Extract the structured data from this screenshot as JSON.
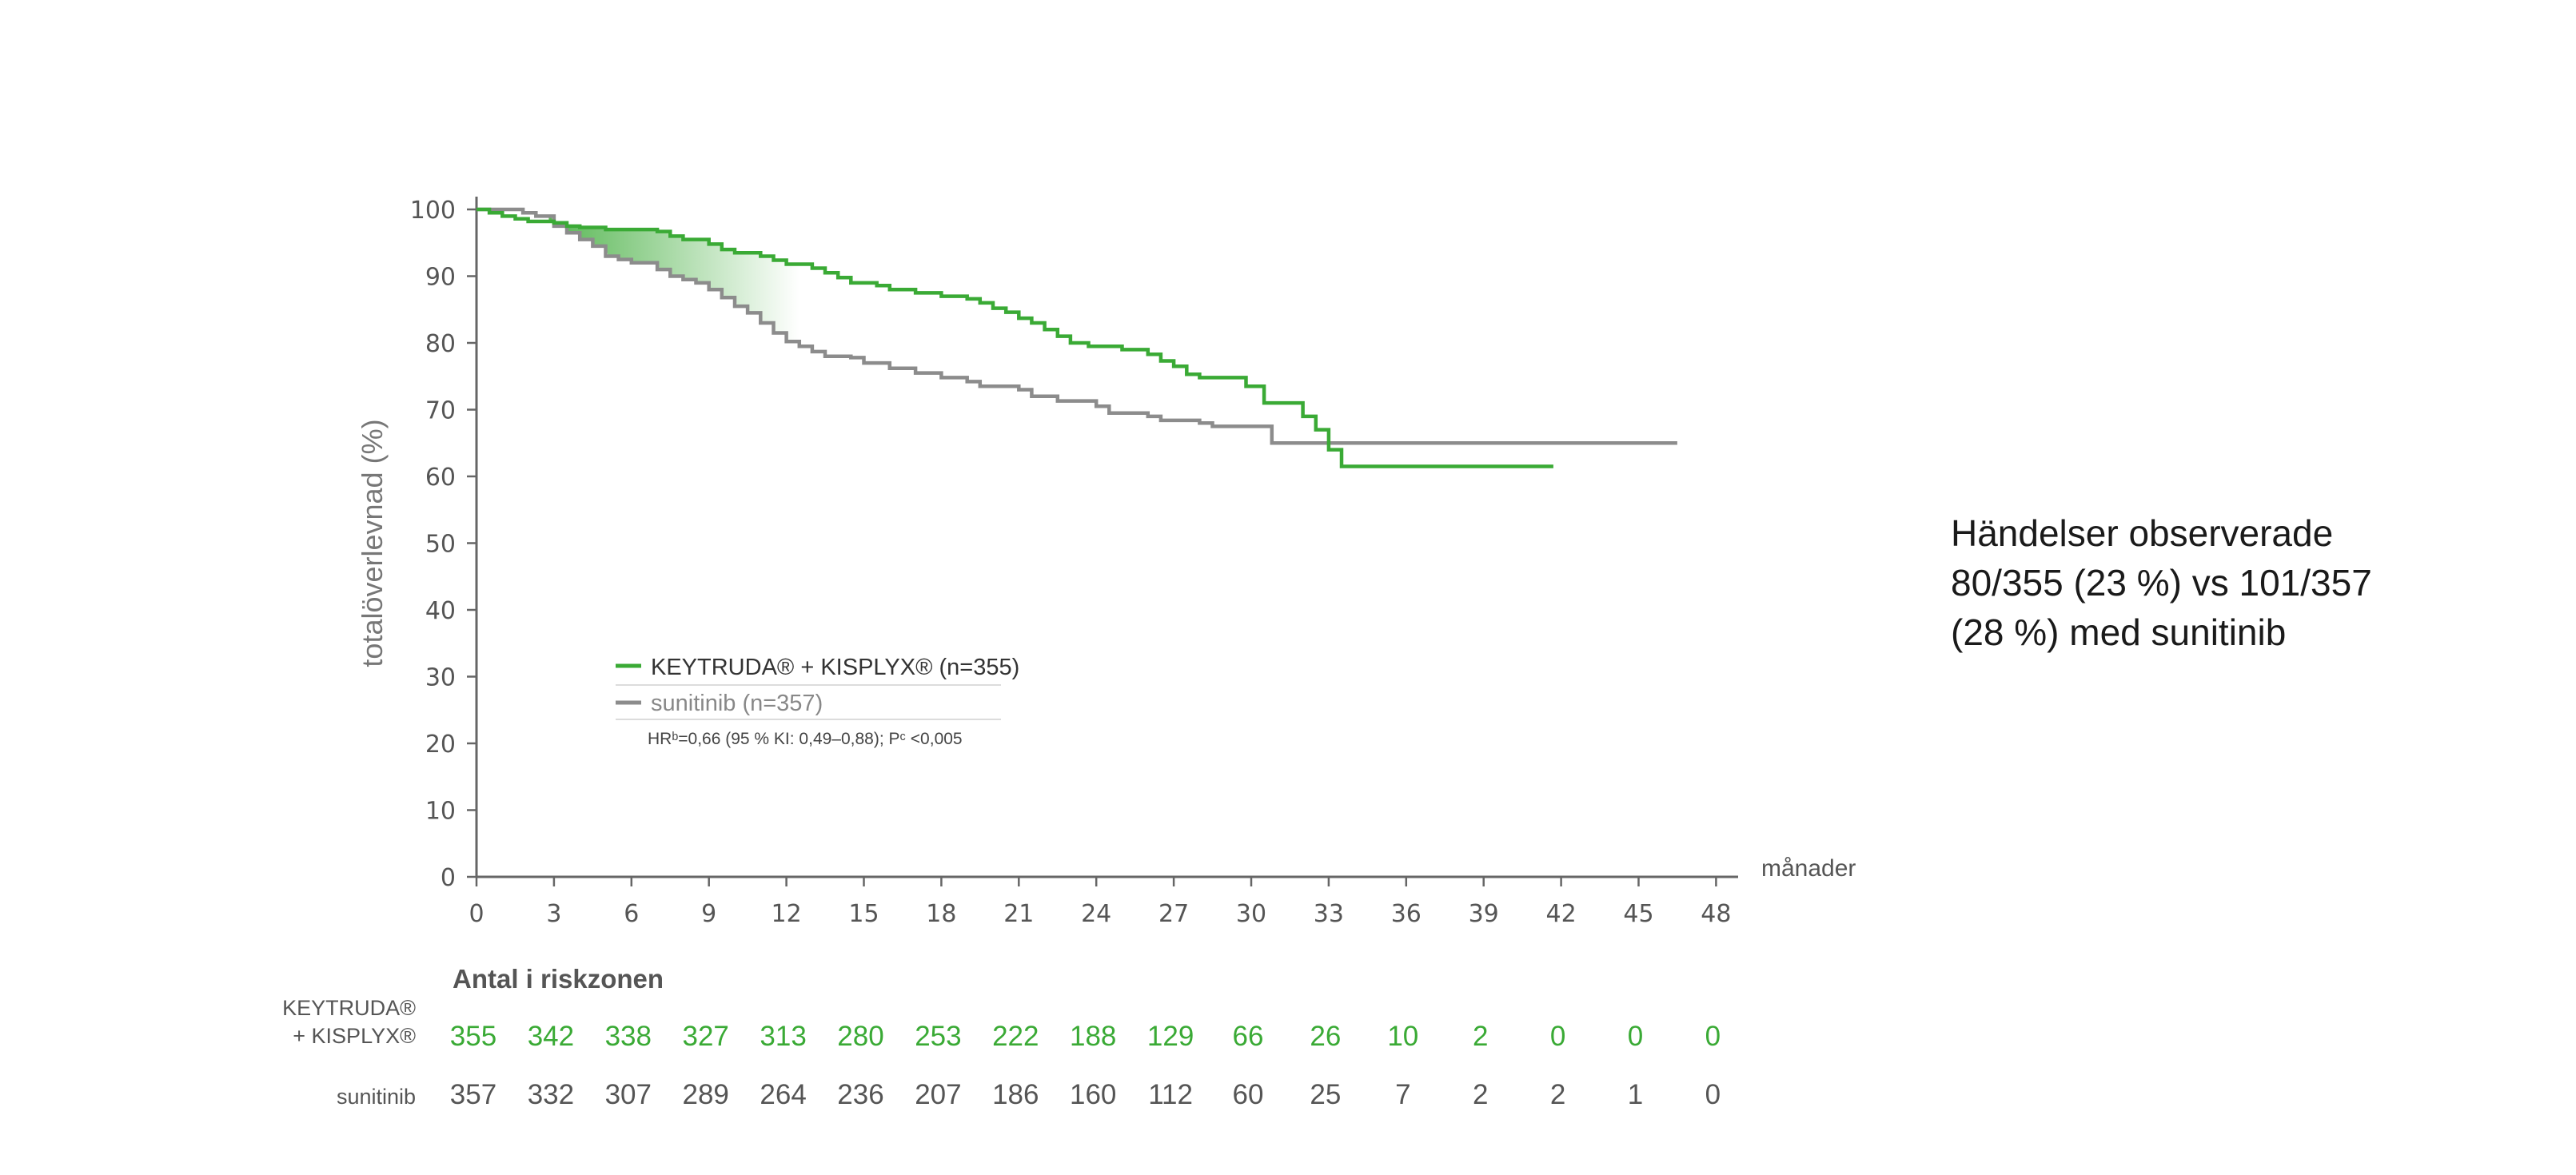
{
  "chart_data": {
    "type": "line",
    "ylabel": "totalöverlevnad (%)",
    "xlabel": "månader",
    "ylim": [
      0,
      100
    ],
    "xlim": [
      0,
      48
    ],
    "xticks": [
      0,
      3,
      6,
      9,
      12,
      15,
      18,
      21,
      24,
      27,
      30,
      33,
      36,
      39,
      42,
      45,
      48
    ],
    "yticks": [
      0,
      10,
      20,
      30,
      40,
      50,
      60,
      70,
      80,
      90,
      100
    ],
    "grid": false,
    "series": [
      {
        "name": "KEYTRUDA® + KISPLYX® (n=355)",
        "color": "#3aaa35",
        "points": [
          [
            0,
            100
          ],
          [
            0.5,
            99.5
          ],
          [
            1,
            99
          ],
          [
            1.5,
            98.6
          ],
          [
            2,
            98.2
          ],
          [
            3,
            98
          ],
          [
            3.5,
            97.5
          ],
          [
            4,
            97.3
          ],
          [
            5,
            97
          ],
          [
            6,
            97
          ],
          [
            7,
            96.7
          ],
          [
            7.5,
            96
          ],
          [
            8,
            95.5
          ],
          [
            9,
            94.8
          ],
          [
            9.5,
            94
          ],
          [
            10,
            93.5
          ],
          [
            11,
            93
          ],
          [
            11.5,
            92.4
          ],
          [
            12,
            91.8
          ],
          [
            13,
            91.2
          ],
          [
            13.5,
            90.5
          ],
          [
            14,
            89.8
          ],
          [
            14.5,
            89
          ],
          [
            15.5,
            88.6
          ],
          [
            16,
            88
          ],
          [
            17,
            87.5
          ],
          [
            18,
            87
          ],
          [
            19,
            86.6
          ],
          [
            19.5,
            86
          ],
          [
            20,
            85.2
          ],
          [
            20.5,
            84.6
          ],
          [
            21,
            83.7
          ],
          [
            21.5,
            83
          ],
          [
            22,
            82
          ],
          [
            22.5,
            81
          ],
          [
            23,
            80
          ],
          [
            23.7,
            79.5
          ],
          [
            25,
            79
          ],
          [
            26,
            78.3
          ],
          [
            26.5,
            77.3
          ],
          [
            27,
            76.5
          ],
          [
            27.5,
            75.3
          ],
          [
            28,
            74.8
          ],
          [
            29,
            74.8
          ],
          [
            29.8,
            73.5
          ],
          [
            30.5,
            71
          ],
          [
            31.5,
            71
          ],
          [
            32,
            69
          ],
          [
            32.5,
            67
          ],
          [
            33,
            64
          ],
          [
            33.5,
            61.5
          ],
          [
            35,
            61.5
          ],
          [
            38,
            61.5
          ],
          [
            41.7,
            61.5
          ]
        ]
      },
      {
        "name": "sunitinib (n=357)",
        "color": "#8c8c8c",
        "points": [
          [
            0,
            100
          ],
          [
            1,
            100
          ],
          [
            1.8,
            99.5
          ],
          [
            2.3,
            99
          ],
          [
            3,
            97.5
          ],
          [
            3.5,
            96.5
          ],
          [
            4,
            95.5
          ],
          [
            4.5,
            94.5
          ],
          [
            5,
            93
          ],
          [
            5.5,
            92.5
          ],
          [
            6,
            92
          ],
          [
            7,
            91
          ],
          [
            7.5,
            90
          ],
          [
            8,
            89.5
          ],
          [
            8.5,
            89
          ],
          [
            9,
            88
          ],
          [
            9.5,
            86.8
          ],
          [
            10,
            85.5
          ],
          [
            10.5,
            84.5
          ],
          [
            11,
            83
          ],
          [
            11.5,
            81.5
          ],
          [
            12,
            80.2
          ],
          [
            12.5,
            79.5
          ],
          [
            13,
            78.7
          ],
          [
            13.5,
            78
          ],
          [
            14.5,
            77.8
          ],
          [
            15,
            77
          ],
          [
            16,
            76.2
          ],
          [
            17,
            75.5
          ],
          [
            18,
            74.8
          ],
          [
            19,
            74.2
          ],
          [
            19.5,
            73.5
          ],
          [
            21,
            73
          ],
          [
            21.5,
            72
          ],
          [
            22.5,
            71.3
          ],
          [
            24,
            70.5
          ],
          [
            24.5,
            69.5
          ],
          [
            26,
            69
          ],
          [
            26.5,
            68.4
          ],
          [
            28,
            68
          ],
          [
            28.5,
            67.5
          ],
          [
            30,
            67.5
          ],
          [
            30.8,
            65
          ],
          [
            31,
            65
          ],
          [
            36,
            65
          ],
          [
            42,
            65
          ],
          [
            46.5,
            65
          ]
        ]
      }
    ],
    "legend": {
      "placement": "center-left",
      "entries": [
        {
          "label": "KEYTRUDA® + KISPLYX® (n=355)",
          "color": "#3aaa35"
        },
        {
          "label": "sunitinib (n=357)",
          "color": "#8c8c8c"
        }
      ],
      "hr_note": "HRᵇ=0,66 (95 % KI: 0,49–0,88); Pᶜ <0,005"
    },
    "risk_table": {
      "title": "Antal i riskzonen",
      "rows": [
        {
          "label_line1": "KEYTRUDA®",
          "label_line2": "+ KISPLYX®",
          "color": "#3aaa35",
          "values": [
            "355",
            "342",
            "338",
            "327",
            "313",
            "280",
            "253",
            "222",
            "188",
            "129",
            "66",
            "26",
            "10",
            "2",
            "0",
            "0",
            "0"
          ]
        },
        {
          "label_line1": "sunitinib",
          "label_line2": "",
          "color": "#555555",
          "values": [
            "357",
            "332",
            "307",
            "289",
            "264",
            "236",
            "207",
            "186",
            "160",
            "112",
            "60",
            "25",
            "7",
            "2",
            "2",
            "1",
            "0"
          ]
        }
      ]
    }
  },
  "events_text": {
    "line1": "Händelser observerade",
    "line2": "80/355 (23 %) vs 101/357",
    "line3": "(28 %) med sunitinib"
  }
}
